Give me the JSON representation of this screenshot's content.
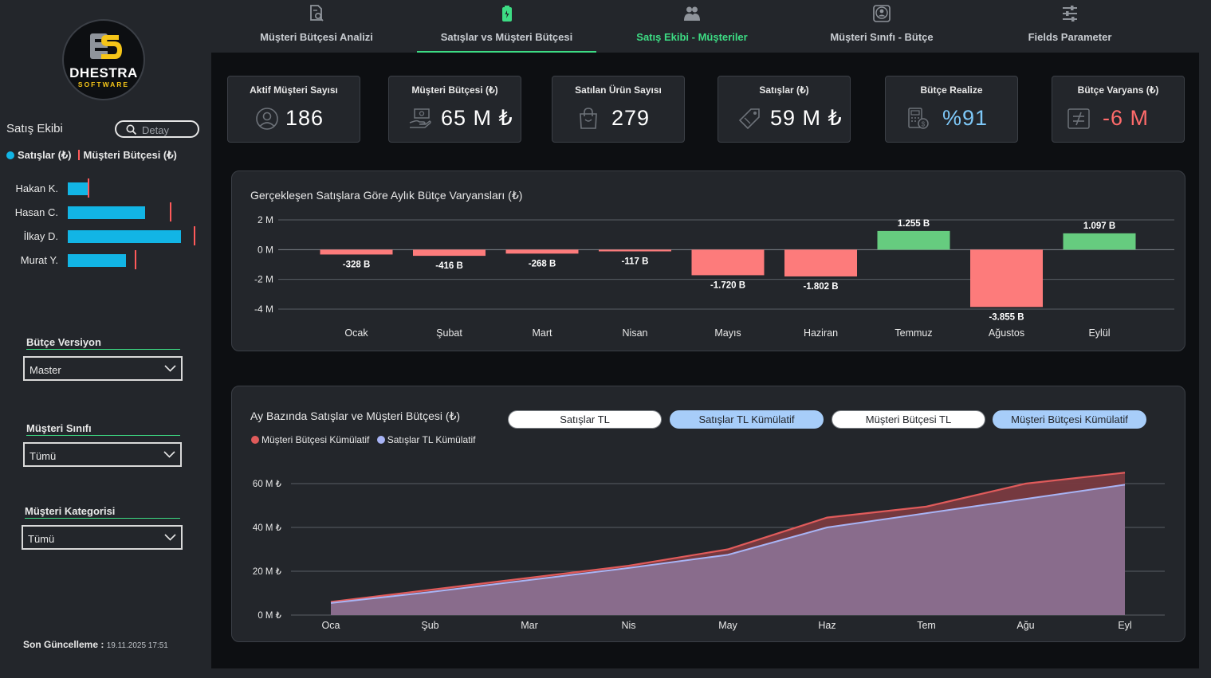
{
  "brand": {
    "name": "DHESTRA",
    "sub": "SOFTWARE"
  },
  "sidebar": {
    "sales_team_title": "Satış Ekibi",
    "detay_label": "Detay",
    "legend_sales": "Satışlar (₺)",
    "legend_budget": "Müşteri Bütçesi (₺)",
    "team": [
      {
        "name": "Hakan K.",
        "sales_fraction": 0.18,
        "budget_fraction": 0.18
      },
      {
        "name": "Hasan C.",
        "sales_fraction": 0.67,
        "budget_fraction": 0.81
      },
      {
        "name": "İlkay D.",
        "sales_fraction": 0.98,
        "budget_fraction": 1.0
      },
      {
        "name": "Murat Y.",
        "sales_fraction": 0.5,
        "budget_fraction": 0.53
      }
    ],
    "slicers": [
      {
        "title": "Bütçe Versiyon",
        "value": "Master"
      },
      {
        "title": "Müşteri Sınıfı",
        "value": "Tümü"
      },
      {
        "title": "Müşteri Kategorisi",
        "value": "Tümü"
      }
    ],
    "last_update_label": "Son Güncelleme :",
    "last_update_value": "19.11.2025 17:51"
  },
  "nav": {
    "tabs": [
      {
        "label": "Müşteri Bütçesi Analizi",
        "icon": "document-search-icon",
        "active": false
      },
      {
        "label": "Satışlar vs Müşteri Bütçesi",
        "icon": "battery-icon",
        "active": false,
        "underlined": true
      },
      {
        "label": "Satış Ekibi - Müşteriler",
        "icon": "people-icon",
        "active": true
      },
      {
        "label": "Müşteri Sınıfı - Bütçe",
        "icon": "user-badge-icon",
        "active": false
      },
      {
        "label": "Fields Parameter",
        "icon": "sliders-icon",
        "active": false
      }
    ]
  },
  "kpis": [
    {
      "title": "Aktif Müşteri Sayısı",
      "value": "186",
      "icon": "user-circle-icon",
      "color": "#ffffff"
    },
    {
      "title": "Müşteri Bütçesi (₺)",
      "value": "65 M ₺",
      "icon": "money-hand-icon",
      "color": "#ffffff"
    },
    {
      "title": "Satılan Ürün Sayısı",
      "value": "279",
      "icon": "shopping-bag-icon",
      "color": "#ffffff"
    },
    {
      "title": "Satışlar (₺)",
      "value": "59 M ₺",
      "icon": "price-tag-icon",
      "color": "#ffffff"
    },
    {
      "title": "Bütçe Realize",
      "value": "%91",
      "icon": "calculator-money-icon",
      "color": "#7ec8f8"
    },
    {
      "title": "Bütçe Varyans (₺)",
      "value": "-6 M",
      "icon": "not-equal-icon",
      "color": "#ff6b6b"
    }
  ],
  "chart1": {
    "title": "Gerçekleşen Satışlara Göre Aylık Bütçe Varyansları (₺)"
  },
  "chart2": {
    "title": "Ay Bazında Satışlar ve Müşteri Bütçesi (₺)",
    "toggles": [
      {
        "label": "Satışlar TL",
        "on": false
      },
      {
        "label": "Satışlar TL Kümülatif",
        "on": true
      },
      {
        "label": "Müşteri Bütçesi TL",
        "on": false
      },
      {
        "label": "Müşteri Bütçesi Kümülatif",
        "on": true
      }
    ],
    "legend": [
      {
        "label": "Müşteri Bütçesi Kümülatif",
        "color": "#e05b5b"
      },
      {
        "label": "Satışlar TL Kümülatif",
        "color": "#a8b4f5"
      }
    ]
  },
  "chart_data": [
    {
      "type": "bar",
      "title": "Gerçekleşen Satışlara Göre Aylık Bütçe Varyansları (₺)",
      "categories": [
        "Ocak",
        "Şubat",
        "Mart",
        "Nisan",
        "Mayıs",
        "Haziran",
        "Temmuz",
        "Ağustos",
        "Eylül"
      ],
      "values": [
        -0.328,
        -0.416,
        -0.268,
        -0.117,
        -1.72,
        -1.802,
        1.255,
        -3.855,
        1.097
      ],
      "value_labels": [
        "-328 B",
        "-416 B",
        "-268 B",
        "-117 B",
        "-1.720 B",
        "-1.802 B",
        "1.255 B",
        "-3.855 B",
        "1.097 B"
      ],
      "ylim": [
        -4,
        2
      ],
      "yticks": [
        2,
        0,
        -2,
        -4
      ],
      "ytick_labels": [
        "2 M",
        "0 M",
        "-2 M",
        "-4 M"
      ],
      "positive_color": "#66cc7f",
      "negative_color": "#fd7b7b",
      "grid": true
    },
    {
      "type": "area",
      "title": "Ay Bazında Satışlar ve Müşteri Bütçesi (₺)",
      "x": [
        "Oca",
        "Şub",
        "Mar",
        "Nis",
        "May",
        "Haz",
        "Tem",
        "Ağu",
        "Eyl"
      ],
      "series": [
        {
          "name": "Müşteri Bütçesi Kümülatif",
          "values": [
            6,
            11.5,
            17,
            22.5,
            30,
            44.5,
            49.5,
            60,
            65
          ],
          "color": "#e05b5b"
        },
        {
          "name": "Satışlar TL Kümülatif",
          "values": [
            5.5,
            10.5,
            16,
            21.5,
            27.5,
            40,
            46.5,
            53,
            59.5
          ],
          "color": "#a8b4f5"
        }
      ],
      "ylim": [
        0,
        70
      ],
      "yticks": [
        0,
        20,
        40,
        60
      ],
      "ytick_labels": [
        "0 M ₺",
        "20 M ₺",
        "40 M ₺",
        "60 M ₺"
      ],
      "grid": true,
      "legend": "top-left"
    }
  ]
}
